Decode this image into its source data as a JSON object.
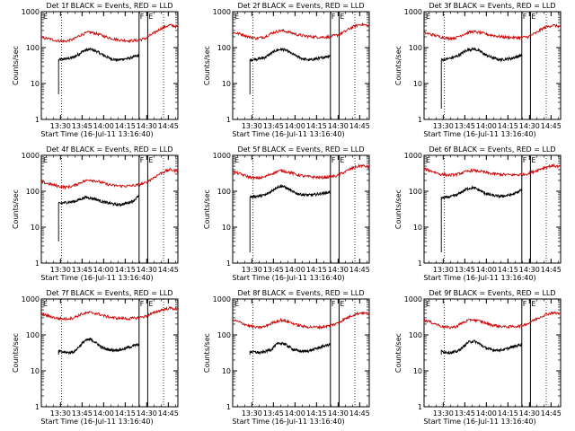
{
  "chart_data": [
    {
      "type": "line",
      "title": "Det 1f BLACK = Events, RED = LLD",
      "xlabel": "Start Time (16-Jul-11 13:16:40)",
      "ylabel": "Counts/sec",
      "ylim": [
        1,
        1000
      ],
      "yscale": "log",
      "xlim_minutes": [
        0,
        95
      ],
      "x_ticks": [
        "13:30",
        "13:45",
        "14:00",
        "14:15",
        "14:30",
        "14:45"
      ],
      "y_ticks": [
        "1",
        "10",
        "100",
        "1000"
      ],
      "flags": [
        "E",
        "F",
        "E"
      ],
      "series": [
        {
          "name": "Events",
          "color": "#000000",
          "start_min": 12,
          "end_min": 68,
          "shape": [
            45,
            48,
            50,
            55,
            70,
            85,
            90,
            80,
            65,
            55,
            48,
            45,
            48,
            50,
            55,
            60
          ],
          "spike_min": 12,
          "spike_min_value": 5
        },
        {
          "name": "LLD",
          "color": "#cc0000",
          "start_min": 0,
          "end_min": 95,
          "shape": [
            190,
            175,
            155,
            150,
            170,
            230,
            270,
            240,
            200,
            175,
            160,
            155,
            160,
            180,
            250,
            350,
            420,
            380
          ]
        }
      ],
      "markers_dotted_min": [
        14,
        85
      ],
      "markers_solid_min": [
        68,
        74
      ]
    },
    {
      "type": "line",
      "title": "Det 2f BLACK = Events, RED = LLD",
      "xlabel": "Start Time (16-Jul-11 13:16:40)",
      "ylabel": "Counts/sec",
      "ylim": [
        1,
        1000
      ],
      "yscale": "log",
      "xlim_minutes": [
        0,
        95
      ],
      "x_ticks": [
        "13:30",
        "13:45",
        "14:00",
        "14:15",
        "14:30",
        "14:45"
      ],
      "y_ticks": [
        "1",
        "10",
        "100",
        "1000"
      ],
      "flags": [
        "E",
        "F",
        "E"
      ],
      "series": [
        {
          "name": "Events",
          "color": "#000000",
          "start_min": 12,
          "end_min": 68,
          "shape": [
            45,
            48,
            50,
            55,
            70,
            85,
            90,
            80,
            65,
            55,
            48,
            45,
            48,
            50,
            55,
            60
          ],
          "spike_min": 12,
          "spike_min_value": 5
        },
        {
          "name": "LLD",
          "color": "#cc0000",
          "start_min": 0,
          "end_min": 95,
          "shape": [
            260,
            240,
            200,
            180,
            200,
            260,
            300,
            270,
            230,
            210,
            200,
            195,
            200,
            220,
            280,
            380,
            450,
            400
          ]
        }
      ],
      "markers_dotted_min": [
        14,
        85
      ],
      "markers_solid_min": [
        68,
        74
      ]
    },
    {
      "type": "line",
      "title": "Det 3f BLACK = Events, RED = LLD",
      "xlabel": "Start Time (16-Jul-11 13:16:40)",
      "ylabel": "Counts/sec",
      "ylim": [
        1,
        1000
      ],
      "yscale": "log",
      "xlim_minutes": [
        0,
        95
      ],
      "x_ticks": [
        "13:30",
        "13:45",
        "14:00",
        "14:15",
        "14:30",
        "14:45"
      ],
      "y_ticks": [
        "1",
        "10",
        "100",
        "1000"
      ],
      "flags": [
        "E",
        "F",
        "E"
      ],
      "series": [
        {
          "name": "Events",
          "color": "#000000",
          "start_min": 12,
          "end_min": 68,
          "shape": [
            45,
            48,
            52,
            58,
            72,
            88,
            92,
            82,
            66,
            56,
            50,
            46,
            48,
            50,
            55,
            62
          ],
          "spike_min": 12,
          "spike_min_value": 2
        },
        {
          "name": "LLD",
          "color": "#cc0000",
          "start_min": 0,
          "end_min": 95,
          "shape": [
            260,
            230,
            200,
            180,
            190,
            240,
            280,
            260,
            230,
            210,
            195,
            190,
            190,
            200,
            260,
            360,
            420,
            380
          ]
        }
      ],
      "markers_dotted_min": [
        14,
        85
      ],
      "markers_solid_min": [
        68,
        74
      ]
    },
    {
      "type": "line",
      "title": "Det 4f BLACK = Events, RED = LLD",
      "xlabel": "Start Time (16-Jul-11 13:16:40)",
      "ylabel": "Counts/sec",
      "ylim": [
        1,
        1000
      ],
      "yscale": "log",
      "xlim_minutes": [
        0,
        95
      ],
      "x_ticks": [
        "13:30",
        "13:45",
        "14:00",
        "14:15",
        "14:30",
        "14:45"
      ],
      "y_ticks": [
        "1",
        "10",
        "100",
        "1000"
      ],
      "flags": [
        "E",
        "F",
        "E"
      ],
      "series": [
        {
          "name": "Events",
          "color": "#000000",
          "start_min": 12,
          "end_min": 68,
          "shape": [
            45,
            48,
            50,
            52,
            60,
            68,
            65,
            60,
            52,
            48,
            45,
            42,
            44,
            48,
            55,
            75
          ],
          "spike_min": 12,
          "spike_min_value": 4
        },
        {
          "name": "LLD",
          "color": "#cc0000",
          "start_min": 0,
          "end_min": 95,
          "shape": [
            180,
            160,
            140,
            130,
            140,
            180,
            210,
            190,
            160,
            145,
            140,
            140,
            150,
            170,
            240,
            330,
            400,
            360
          ]
        }
      ],
      "markers_dotted_min": [
        14,
        85
      ],
      "markers_solid_min": [
        68,
        74
      ]
    },
    {
      "type": "line",
      "title": "Det 5f BLACK = Events, RED = LLD",
      "xlabel": "Start Time (16-Jul-11 13:16:40)",
      "ylabel": "Counts/sec",
      "ylim": [
        1,
        1000
      ],
      "yscale": "log",
      "xlim_minutes": [
        0,
        95
      ],
      "x_ticks": [
        "13:30",
        "13:45",
        "14:00",
        "14:15",
        "14:30",
        "14:45"
      ],
      "y_ticks": [
        "1",
        "10",
        "100",
        "1000"
      ],
      "flags": [
        "E",
        "F",
        "E"
      ],
      "series": [
        {
          "name": "Events",
          "color": "#000000",
          "start_min": 12,
          "end_min": 68,
          "shape": [
            70,
            72,
            75,
            80,
            100,
            130,
            140,
            120,
            95,
            85,
            80,
            78,
            80,
            85,
            90,
            95
          ],
          "spike_min": 12,
          "spike_min_value": 2
        },
        {
          "name": "LLD",
          "color": "#cc0000",
          "start_min": 0,
          "end_min": 95,
          "shape": [
            350,
            300,
            250,
            230,
            250,
            320,
            380,
            340,
            290,
            260,
            250,
            240,
            250,
            270,
            350,
            450,
            520,
            470
          ]
        }
      ],
      "markers_dotted_min": [
        14,
        85
      ],
      "markers_solid_min": [
        68,
        74
      ]
    },
    {
      "type": "line",
      "title": "Det 6f BLACK = Events, RED = LLD",
      "xlabel": "Start Time (16-Jul-11 13:16:40)",
      "ylabel": "Counts/sec",
      "ylim": [
        1,
        1000
      ],
      "yscale": "log",
      "xlim_minutes": [
        0,
        95
      ],
      "x_ticks": [
        "13:30",
        "13:45",
        "14:00",
        "14:15",
        "14:30",
        "14:45"
      ],
      "y_ticks": [
        "1",
        "10",
        "100",
        "1000"
      ],
      "flags": [
        "E",
        "F",
        "E"
      ],
      "series": [
        {
          "name": "Events",
          "color": "#000000",
          "start_min": 12,
          "end_min": 68,
          "shape": [
            65,
            68,
            72,
            80,
            100,
            120,
            125,
            110,
            90,
            80,
            75,
            72,
            75,
            80,
            90,
            110
          ],
          "spike_min": 12,
          "spike_min_value": 2
        },
        {
          "name": "LLD",
          "color": "#cc0000",
          "start_min": 0,
          "end_min": 95,
          "shape": [
            420,
            360,
            300,
            280,
            290,
            340,
            380,
            360,
            320,
            300,
            290,
            285,
            290,
            310,
            380,
            460,
            520,
            480
          ]
        }
      ],
      "markers_dotted_min": [
        14,
        85
      ],
      "markers_solid_min": [
        68,
        74
      ]
    },
    {
      "type": "line",
      "title": "Det 7f BLACK = Events, RED = LLD",
      "xlabel": "Start Time (16-Jul-11 13:16:40)",
      "ylabel": "Counts/sec",
      "ylim": [
        1,
        1000
      ],
      "yscale": "log",
      "xlim_minutes": [
        0,
        95
      ],
      "x_ticks": [
        "13:30",
        "13:45",
        "14:00",
        "14:15",
        "14:30",
        "14:45"
      ],
      "y_ticks": [
        "1",
        "10",
        "100",
        "1000"
      ],
      "flags": [
        "E",
        "F",
        "E"
      ],
      "series": [
        {
          "name": "Events",
          "color": "#000000",
          "start_min": 12,
          "end_min": 68,
          "shape": [
            35,
            33,
            32,
            35,
            50,
            70,
            75,
            60,
            45,
            40,
            38,
            38,
            40,
            45,
            50,
            55
          ],
          "spike_min": 12,
          "spike_min_value": 28
        },
        {
          "name": "LLD",
          "color": "#cc0000",
          "start_min": 0,
          "end_min": 95,
          "shape": [
            380,
            330,
            290,
            280,
            300,
            380,
            420,
            390,
            330,
            300,
            290,
            285,
            300,
            330,
            410,
            500,
            560,
            520
          ]
        }
      ],
      "markers_dotted_min": [
        14,
        85
      ],
      "markers_solid_min": [
        68,
        74
      ]
    },
    {
      "type": "line",
      "title": "Det 8f BLACK = Events, RED = LLD",
      "xlabel": "Start Time (16-Jul-11 13:16:40)",
      "ylabel": "Counts/sec",
      "ylim": [
        1,
        1000
      ],
      "yscale": "log",
      "xlim_minutes": [
        0,
        95
      ],
      "x_ticks": [
        "13:30",
        "13:45",
        "14:00",
        "14:15",
        "14:30",
        "14:45"
      ],
      "y_ticks": [
        "1",
        "10",
        "100",
        "1000"
      ],
      "flags": [
        "E",
        "F",
        "E"
      ],
      "series": [
        {
          "name": "Events",
          "color": "#000000",
          "start_min": 12,
          "end_min": 68,
          "shape": [
            35,
            33,
            32,
            35,
            40,
            55,
            60,
            50,
            40,
            36,
            35,
            36,
            40,
            45,
            50,
            55
          ],
          "spike_min": 12,
          "spike_min_value": 28
        },
        {
          "name": "LLD",
          "color": "#cc0000",
          "start_min": 0,
          "end_min": 95,
          "shape": [
            260,
            220,
            180,
            160,
            170,
            220,
            260,
            230,
            190,
            170,
            165,
            165,
            180,
            210,
            280,
            360,
            420,
            380
          ]
        }
      ],
      "markers_dotted_min": [
        14,
        85
      ],
      "markers_solid_min": [
        68,
        74
      ]
    },
    {
      "type": "line",
      "title": "Det 9f BLACK = Events, RED = LLD",
      "xlabel": "Start Time (16-Jul-11 13:16:40)",
      "ylabel": "Counts/sec",
      "ylim": [
        1,
        1000
      ],
      "yscale": "log",
      "xlim_minutes": [
        0,
        95
      ],
      "x_ticks": [
        "13:30",
        "13:45",
        "14:00",
        "14:15",
        "14:30",
        "14:45"
      ],
      "y_ticks": [
        "1",
        "10",
        "100",
        "1000"
      ],
      "flags": [
        "E",
        "F",
        "E"
      ],
      "series": [
        {
          "name": "Events",
          "color": "#000000",
          "start_min": 12,
          "end_min": 68,
          "shape": [
            35,
            33,
            32,
            35,
            45,
            62,
            68,
            58,
            45,
            40,
            38,
            38,
            40,
            45,
            50,
            55
          ],
          "spike_min": 12,
          "spike_min_value": 28
        },
        {
          "name": "LLD",
          "color": "#cc0000",
          "start_min": 0,
          "end_min": 95,
          "shape": [
            260,
            220,
            180,
            160,
            170,
            230,
            270,
            240,
            200,
            180,
            170,
            170,
            180,
            210,
            280,
            360,
            420,
            380
          ]
        }
      ],
      "markers_dotted_min": [
        14,
        85
      ],
      "markers_solid_min": [
        68,
        74
      ]
    }
  ]
}
